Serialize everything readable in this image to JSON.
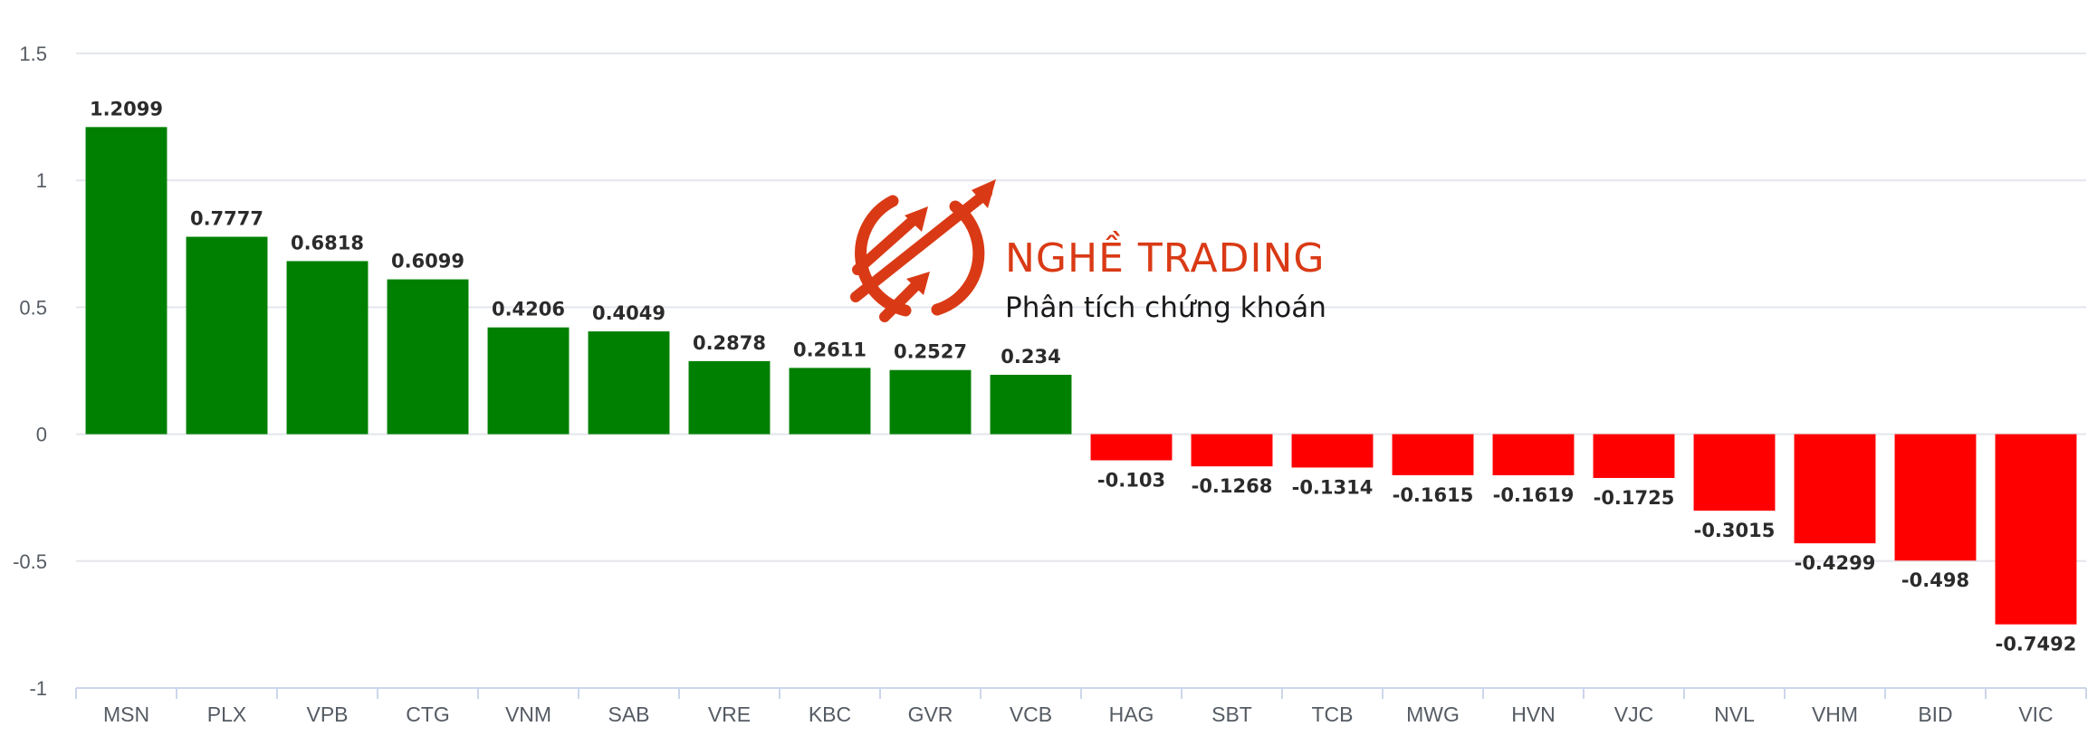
{
  "colors": {
    "positive": "#008000",
    "negative": "#ff0000",
    "grid": "#e3e6ec",
    "axis": "#ccd6eb",
    "brand": "#d93a15"
  },
  "watermark": {
    "icon": "upward-trend-arrows-logo-icon",
    "name": "NGHỀ TRADING",
    "tagline": "Phân tích chứng khoán"
  },
  "chart_data": {
    "type": "bar",
    "title": "",
    "xlabel": "",
    "ylabel": "",
    "ylim": [
      -1,
      1.5
    ],
    "yticks": [
      1.5,
      1,
      0.5,
      0,
      -0.5,
      -1
    ],
    "ytick_labels": [
      "1.5",
      "1",
      "0.5",
      "0",
      "-0.5",
      "-1"
    ],
    "grid": true,
    "legend": "none",
    "categories": [
      "MSN",
      "PLX",
      "VPB",
      "CTG",
      "VNM",
      "SAB",
      "VRE",
      "KBC",
      "GVR",
      "VCB",
      "HAG",
      "SBT",
      "TCB",
      "MWG",
      "HVN",
      "VJC",
      "NVL",
      "VHM",
      "BID",
      "VIC"
    ],
    "values": [
      1.2099,
      0.7777,
      0.6818,
      0.6099,
      0.4206,
      0.4049,
      0.2878,
      0.2611,
      0.2527,
      0.234,
      -0.103,
      -0.1268,
      -0.1314,
      -0.1615,
      -0.1619,
      -0.1725,
      -0.3015,
      -0.4299,
      -0.498,
      -0.7492
    ],
    "value_labels": [
      "1.2099",
      "0.7777",
      "0.6818",
      "0.6099",
      "0.4206",
      "0.4049",
      "0.2878",
      "0.2611",
      "0.2527",
      "0.234",
      "-0.103",
      "-0.1268",
      "-0.1314",
      "-0.1615",
      "-0.1619",
      "-0.1725",
      "-0.3015",
      "-0.4299",
      "-0.498",
      "-0.7492"
    ]
  }
}
